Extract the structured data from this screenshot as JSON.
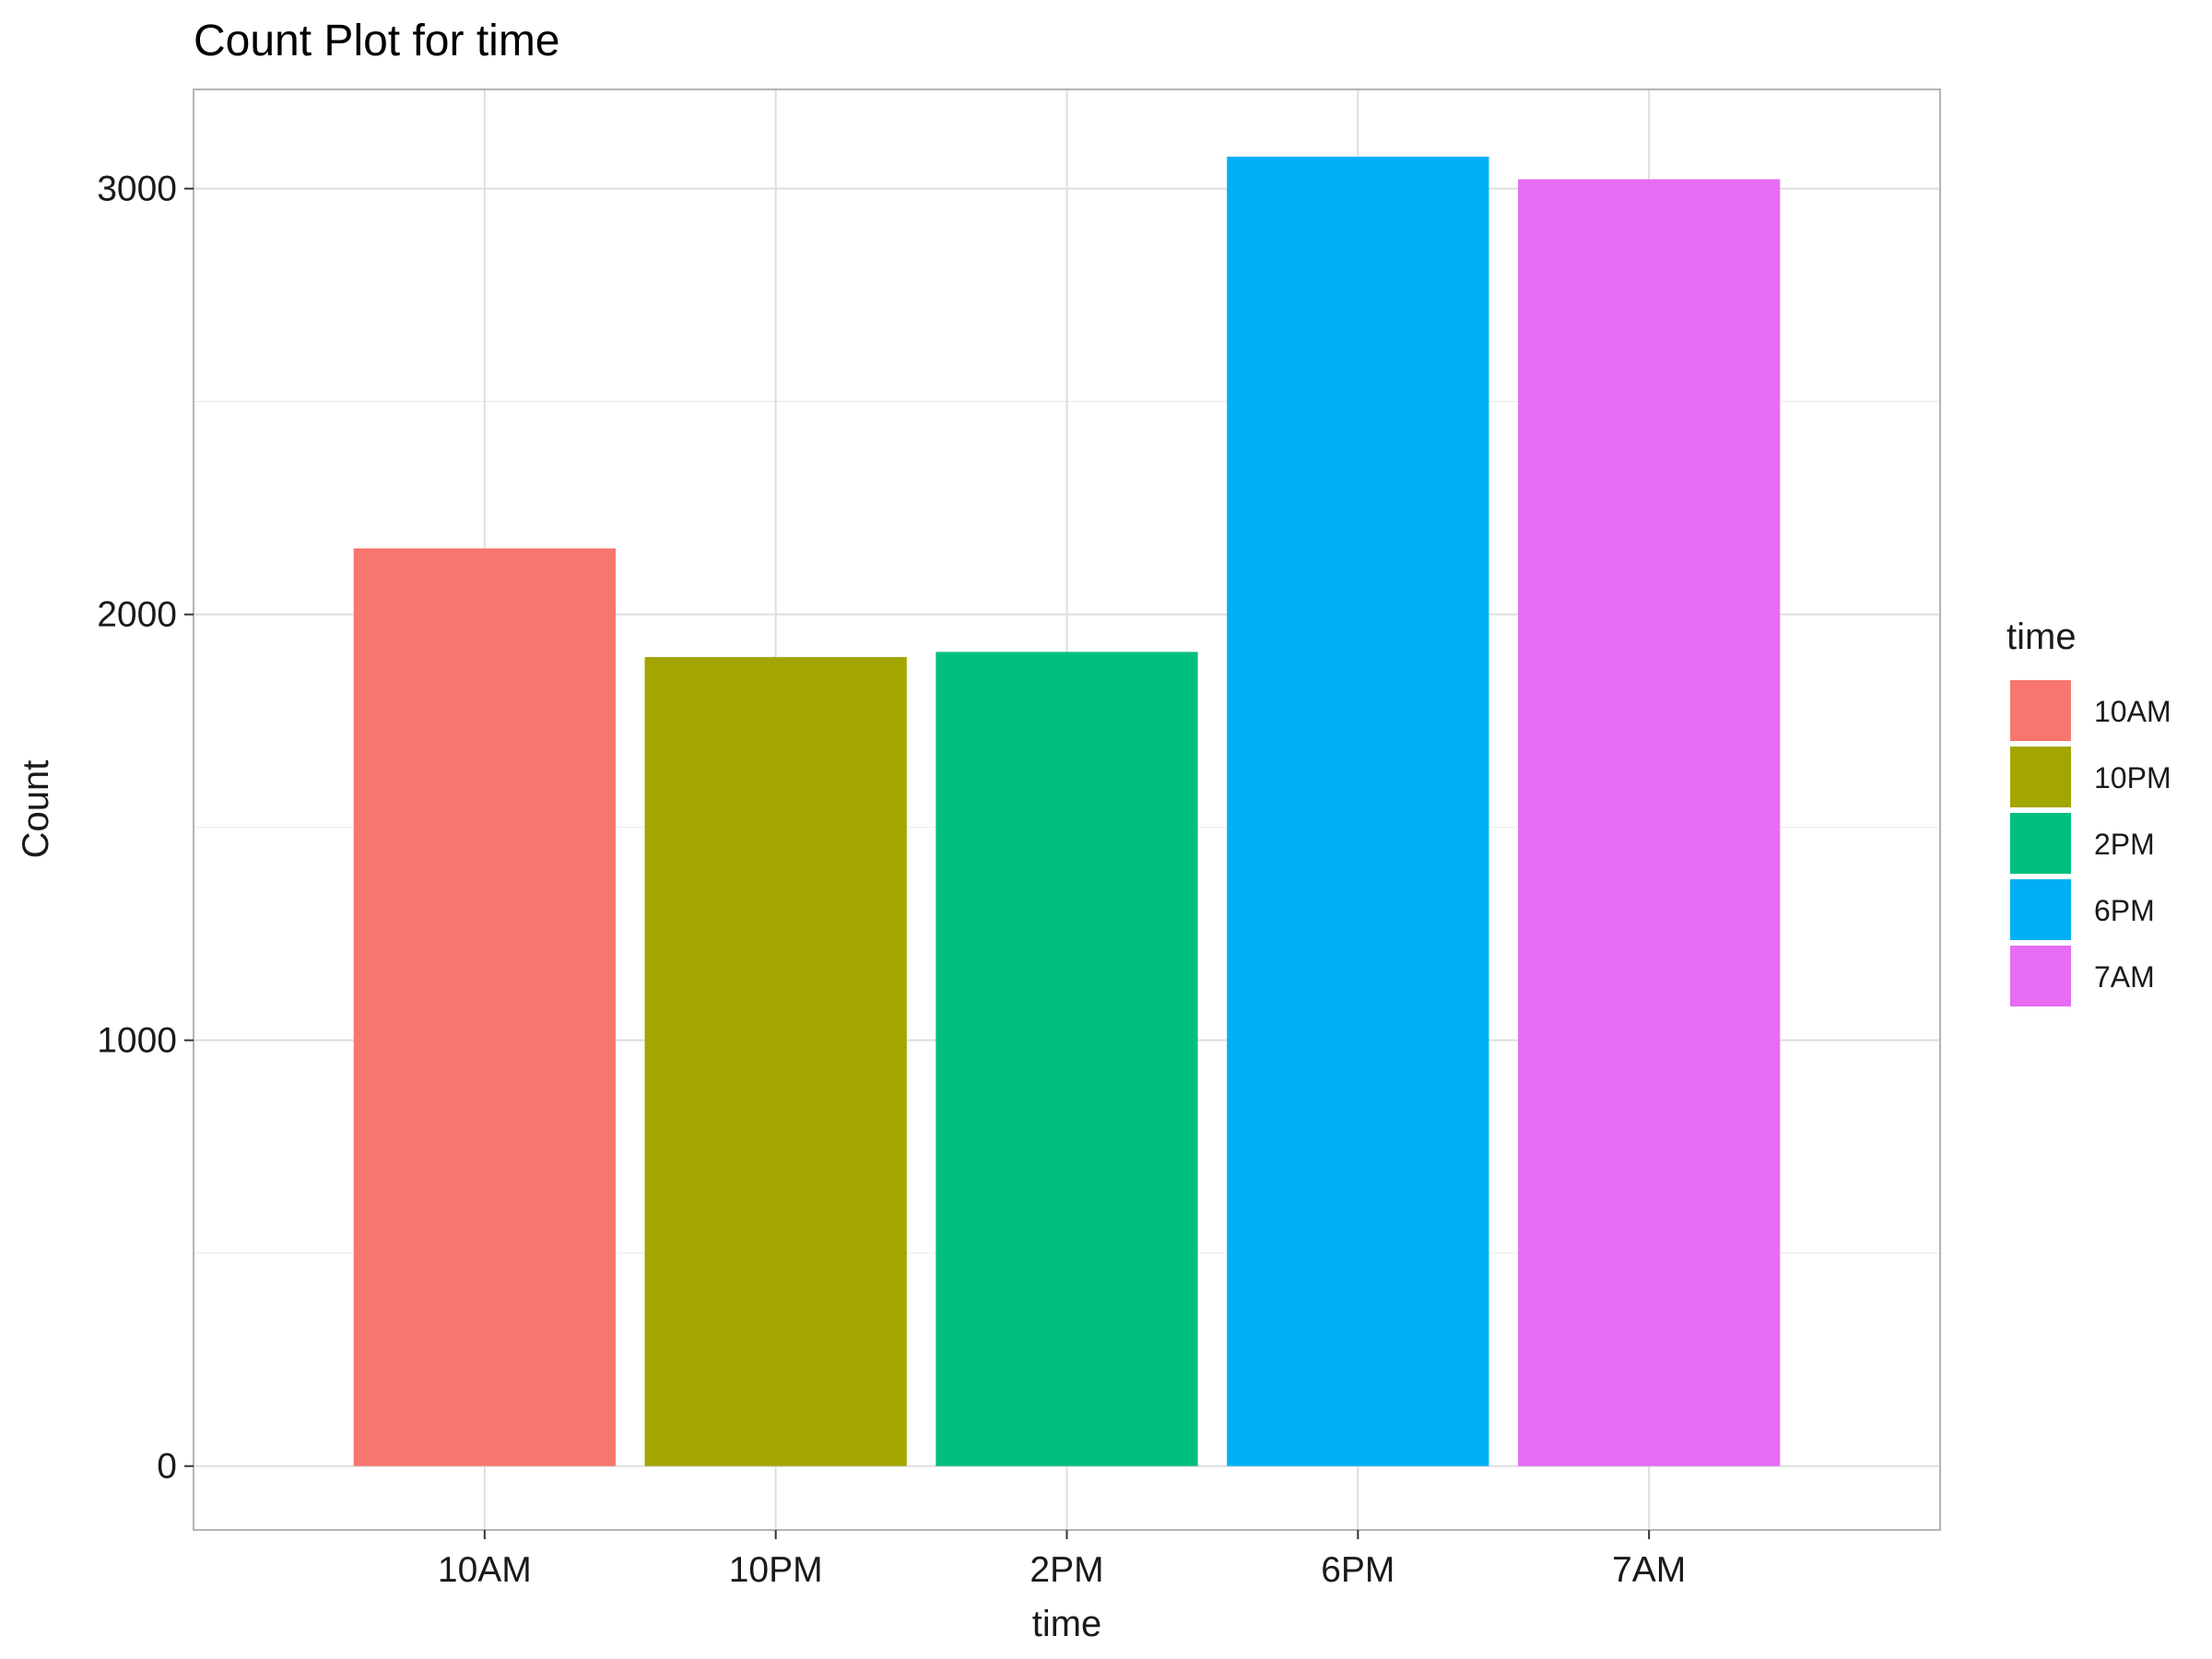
{
  "chart_data": {
    "type": "bar",
    "title": "Count Plot for time",
    "xlabel": "time",
    "ylabel": "Count",
    "categories": [
      "10AM",
      "10PM",
      "2PM",
      "6PM",
      "7AM"
    ],
    "values": [
      2155,
      1900,
      1912,
      3075,
      3022
    ],
    "colors": [
      "#F8766D",
      "#A3A500",
      "#00BF7D",
      "#00B0F6",
      "#E76BF3"
    ],
    "ylim": [
      -150,
      3233
    ],
    "yticks": [
      0,
      1000,
      2000,
      3000
    ],
    "ytick_labels": [
      "0",
      "1000",
      "2000",
      "3000"
    ],
    "grid": true,
    "legend": {
      "title": "time",
      "position": "right",
      "items": [
        "10AM",
        "10PM",
        "2PM",
        "6PM",
        "7AM"
      ]
    }
  }
}
